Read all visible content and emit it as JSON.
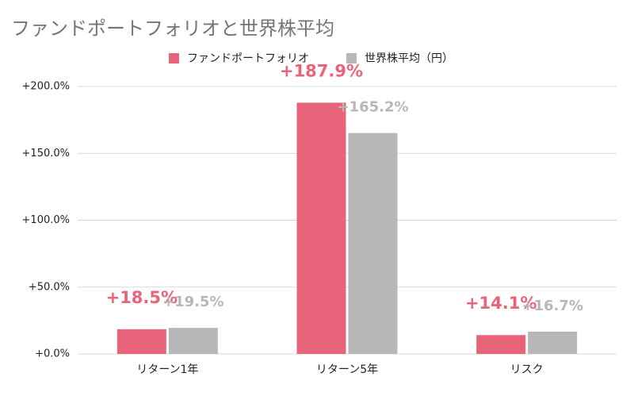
{
  "chart_data": {
    "type": "bar",
    "title": "ファンドポートフォリオと世界株平均",
    "categories": [
      "リターン1年",
      "リターン5年",
      "リスク"
    ],
    "series": [
      {
        "name": "ファンドポートフォリオ",
        "color": "#e8647a",
        "values": [
          18.5,
          187.9,
          14.1
        ],
        "value_labels": [
          "+18.5%",
          "+187.9%",
          "+14.1%"
        ]
      },
      {
        "name": "世界株平均（円）",
        "color": "#b7b7b7",
        "values": [
          19.5,
          165.2,
          16.7
        ],
        "value_labels": [
          "+19.5%",
          "+165.2%",
          "+16.7%"
        ]
      }
    ],
    "ylim": [
      0,
      200
    ],
    "yticks": [
      {
        "value": 0,
        "label": "+0.0%"
      },
      {
        "value": 50,
        "label": "+50.0%"
      },
      {
        "value": 100,
        "label": "+100.0%"
      },
      {
        "value": 150,
        "label": "+150.0%"
      },
      {
        "value": 200,
        "label": "+200.0%"
      }
    ],
    "grid": true,
    "legend": "top"
  }
}
